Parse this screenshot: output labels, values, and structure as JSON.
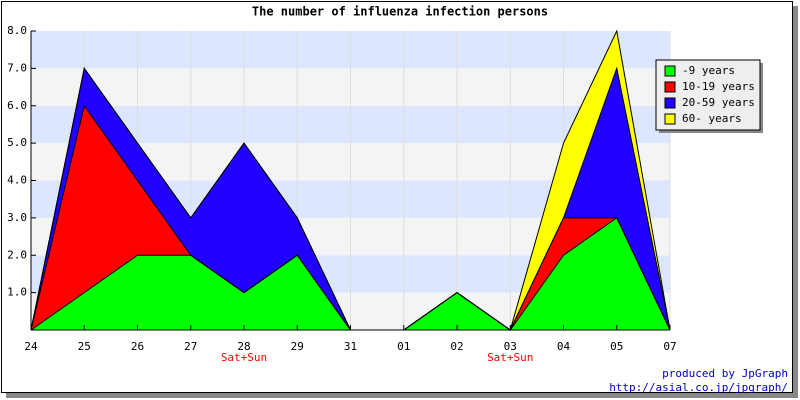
{
  "chart_data": {
    "type": "stacked_area",
    "title": "The number of influenza infection persons",
    "categories": [
      "24",
      "25",
      "26",
      "27",
      "28",
      "29",
      "31",
      "01",
      "02",
      "03",
      "04",
      "05",
      "07"
    ],
    "series": [
      {
        "name": "-9 years",
        "color": "#00ff00",
        "values": [
          0,
          1,
          2,
          2,
          1,
          2,
          0,
          0,
          1,
          0,
          2,
          3,
          0
        ]
      },
      {
        "name": "10-19 years",
        "color": "#ff0000",
        "values": [
          0,
          5,
          2,
          0,
          0,
          0,
          0,
          0,
          0,
          0,
          1,
          0,
          0
        ]
      },
      {
        "name": "20-59 years",
        "color": "#2200ff",
        "values": [
          0,
          1,
          1,
          1,
          4,
          1,
          0,
          0,
          0,
          0,
          0,
          4,
          0
        ]
      },
      {
        "name": "60- years",
        "color": "#ffff00",
        "values": [
          0,
          0,
          0,
          0,
          0,
          0,
          0,
          0,
          0,
          0,
          2,
          1,
          0
        ]
      }
    ],
    "ylim": [
      0,
      8
    ],
    "yticks": [
      {
        "value": 1,
        "label": "1.0"
      },
      {
        "value": 2,
        "label": "2.0"
      },
      {
        "value": 3,
        "label": "3.0"
      },
      {
        "value": 4,
        "label": "4.0"
      },
      {
        "value": 5,
        "label": "5.0"
      },
      {
        "value": 6,
        "label": "6.0"
      },
      {
        "value": 7,
        "label": "7.0"
      },
      {
        "value": 8,
        "label": "8.0"
      }
    ],
    "grid": true,
    "legend": "top-right",
    "annotations": [
      {
        "text": "Sat+Sun",
        "at": "28"
      },
      {
        "text": "Sat+Sun",
        "at": "03"
      }
    ],
    "credits": [
      "produced by JpGraph",
      "http://asial.co.jp/jpgraph/"
    ]
  }
}
